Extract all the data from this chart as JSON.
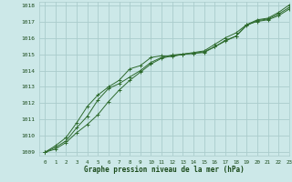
{
  "title": "Graphe pression niveau de la mer (hPa)",
  "bg_color": "#cce8e8",
  "grid_color": "#aacccc",
  "line_color": "#2d6a2d",
  "text_color": "#1a4a1a",
  "xlim": [
    -0.5,
    23
  ],
  "ylim": [
    1008.8,
    1018.2
  ],
  "yticks": [
    1009,
    1010,
    1011,
    1012,
    1013,
    1014,
    1015,
    1016,
    1017,
    1018
  ],
  "xticks": [
    0,
    1,
    2,
    3,
    4,
    5,
    6,
    7,
    8,
    9,
    10,
    11,
    12,
    13,
    14,
    15,
    16,
    17,
    18,
    19,
    20,
    21,
    22,
    23
  ],
  "series1": [
    1009.0,
    1009.4,
    1009.9,
    1010.8,
    1011.8,
    1012.5,
    1013.0,
    1013.4,
    1014.1,
    1014.3,
    1014.8,
    1014.9,
    1014.85,
    1015.0,
    1015.1,
    1015.2,
    1015.6,
    1016.0,
    1016.3,
    1016.8,
    1017.0,
    1017.1,
    1017.35,
    1017.75
  ],
  "series2": [
    1009.0,
    1009.3,
    1009.7,
    1010.5,
    1011.2,
    1012.2,
    1012.9,
    1013.2,
    1013.6,
    1014.0,
    1014.5,
    1014.8,
    1014.95,
    1015.0,
    1015.05,
    1015.1,
    1015.45,
    1015.85,
    1016.1,
    1016.8,
    1017.1,
    1017.2,
    1017.55,
    1018.0
  ],
  "series3": [
    1009.0,
    1009.2,
    1009.6,
    1010.2,
    1010.7,
    1011.3,
    1012.1,
    1012.8,
    1013.4,
    1013.9,
    1014.4,
    1014.75,
    1014.9,
    1015.0,
    1015.05,
    1015.15,
    1015.45,
    1015.8,
    1016.1,
    1016.75,
    1017.05,
    1017.15,
    1017.45,
    1017.85
  ]
}
